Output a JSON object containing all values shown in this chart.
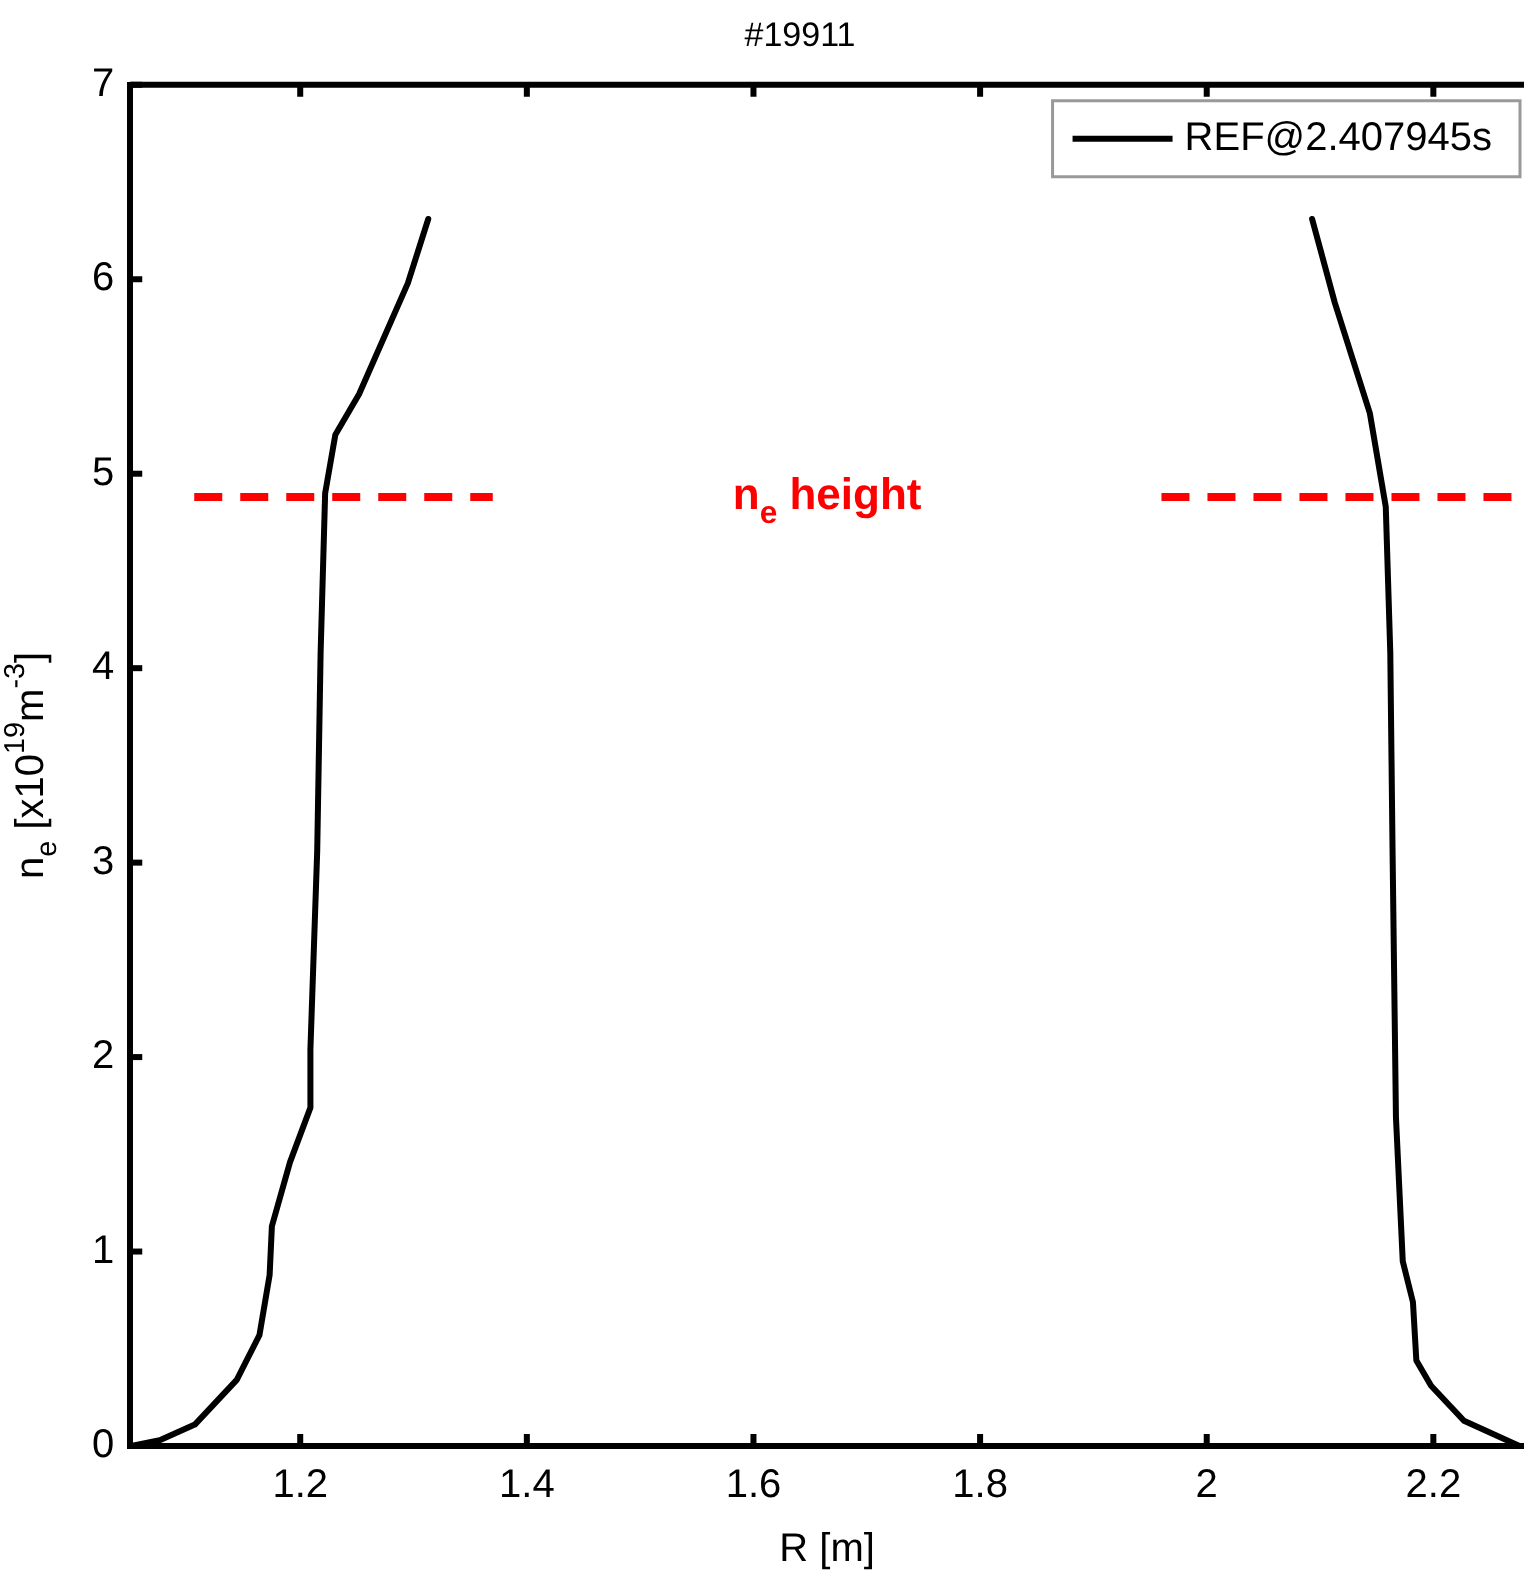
{
  "chart_data": {
    "type": "line",
    "title": "#19911",
    "xlabel": "R [m]",
    "ylabel": "n$_{e}$ [x10$^{19}$m$^{-3}$]",
    "x": [
      1.051,
      1.076,
      1.107,
      1.144,
      1.164,
      1.173,
      1.175,
      1.191,
      1.209,
      1.209,
      1.215,
      1.218,
      1.222,
      1.231,
      1.252,
      1.295,
      1.313,
      1.7,
      2.093,
      2.113,
      2.144,
      2.158,
      2.162,
      2.164,
      2.167,
      2.173,
      2.182,
      2.185,
      2.198,
      2.227,
      2.276
    ],
    "series": [
      {
        "name": "REF@2.407945s",
        "color": "#000000",
        "values": [
          0,
          0.03,
          0.11,
          0.34,
          0.57,
          0.88,
          1.13,
          1.46,
          1.74,
          2.04,
          3.06,
          4.08,
          4.9,
          5.2,
          5.41,
          5.98,
          6.31,
          null,
          6.31,
          5.88,
          5.31,
          4.83,
          4.08,
          3.06,
          1.69,
          0.95,
          0.74,
          0.44,
          0.31,
          0.13,
          0
        ]
      }
    ],
    "xlim": [
      1.05,
      2.28
    ],
    "xticks": [
      1.2,
      1.4,
      1.6,
      1.8,
      2,
      2.2
    ],
    "ylim": [
      0,
      7
    ],
    "yticks": [
      0,
      1,
      2,
      3,
      4,
      5,
      6,
      7
    ],
    "ref_lines": [
      {
        "axis": "y",
        "value": 4.88,
        "label": "n$_{e}$ height",
        "color": "#ff0000",
        "line_style": "dashed"
      }
    ],
    "legend": "top right",
    "marker": "none",
    "line_style": "solid",
    "grid": false
  }
}
